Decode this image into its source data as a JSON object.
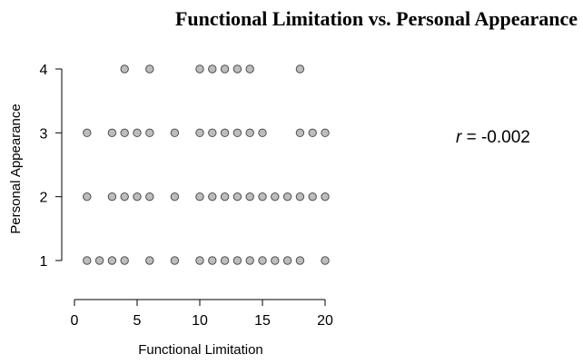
{
  "chart_data": {
    "type": "scatter",
    "title": "Functional Limitation vs. Personal Appearance",
    "xlabel": "Functional Limitation",
    "ylabel": "Personal Appearance",
    "xlim": [
      0,
      20
    ],
    "ylim": [
      1,
      4
    ],
    "x_ticks": [
      "0",
      "5",
      "10",
      "15",
      "20"
    ],
    "y_ticks": [
      "1",
      "2",
      "3",
      "4"
    ],
    "annotation": {
      "symbol": "r",
      "text": " = -0.002"
    },
    "point_color": "#bdbdbd",
    "point_stroke": "#4d4d4d",
    "points": [
      [
        4,
        4
      ],
      [
        6,
        4
      ],
      [
        10,
        4
      ],
      [
        11,
        4
      ],
      [
        12,
        4
      ],
      [
        13,
        4
      ],
      [
        14,
        4
      ],
      [
        18,
        4
      ],
      [
        1,
        3
      ],
      [
        3,
        3
      ],
      [
        4,
        3
      ],
      [
        5,
        3
      ],
      [
        6,
        3
      ],
      [
        8,
        3
      ],
      [
        10,
        3
      ],
      [
        11,
        3
      ],
      [
        12,
        3
      ],
      [
        13,
        3
      ],
      [
        14,
        3
      ],
      [
        15,
        3
      ],
      [
        18,
        3
      ],
      [
        19,
        3
      ],
      [
        20,
        3
      ],
      [
        1,
        2
      ],
      [
        3,
        2
      ],
      [
        4,
        2
      ],
      [
        5,
        2
      ],
      [
        6,
        2
      ],
      [
        8,
        2
      ],
      [
        10,
        2
      ],
      [
        11,
        2
      ],
      [
        12,
        2
      ],
      [
        13,
        2
      ],
      [
        14,
        2
      ],
      [
        15,
        2
      ],
      [
        16,
        2
      ],
      [
        17,
        2
      ],
      [
        18,
        2
      ],
      [
        19,
        2
      ],
      [
        20,
        2
      ],
      [
        1,
        1
      ],
      [
        2,
        1
      ],
      [
        3,
        1
      ],
      [
        4,
        1
      ],
      [
        6,
        1
      ],
      [
        8,
        1
      ],
      [
        10,
        1
      ],
      [
        11,
        1
      ],
      [
        12,
        1
      ],
      [
        13,
        1
      ],
      [
        14,
        1
      ],
      [
        15,
        1
      ],
      [
        16,
        1
      ],
      [
        17,
        1
      ],
      [
        18,
        1
      ],
      [
        20,
        1
      ]
    ]
  }
}
